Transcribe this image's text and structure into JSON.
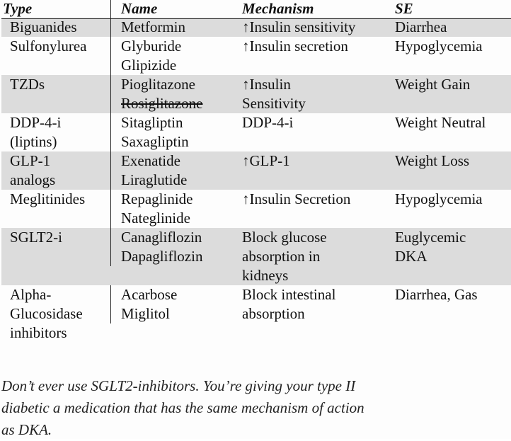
{
  "table": {
    "headers": {
      "type": "Type",
      "name": "Name",
      "mechanism": "Mechanism",
      "se": "SE"
    },
    "rows": [
      {
        "shaded": true,
        "type": [
          "Biguanides"
        ],
        "name": [
          "Metformin"
        ],
        "mechanism": [
          "↑Insulin sensitivity"
        ],
        "se": [
          "Diarrhea"
        ]
      },
      {
        "shaded": false,
        "type": [
          "Sulfonylurea"
        ],
        "name": [
          "Glyburide",
          "Glipizide"
        ],
        "mechanism": [
          "↑Insulin secretion"
        ],
        "se": [
          "Hypoglycemia"
        ]
      },
      {
        "shaded": true,
        "type": [
          "TZDs"
        ],
        "name": [
          "Pioglitazone",
          "Rosiglitazone"
        ],
        "mechanism": [
          "↑Insulin",
          "Sensitivity"
        ],
        "se": [
          "Weight Gain"
        ]
      },
      {
        "shaded": false,
        "type": [
          "DDP-4-i",
          "(liptins)"
        ],
        "name": [
          "Sitagliptin",
          "Saxagliptin"
        ],
        "mechanism": [
          "DDP-4-i"
        ],
        "se": [
          "Weight Neutral"
        ]
      },
      {
        "shaded": true,
        "type": [
          "GLP-1",
          "analogs"
        ],
        "name": [
          "Exenatide",
          "Liraglutide"
        ],
        "mechanism": [
          "↑GLP-1"
        ],
        "se": [
          "Weight Loss"
        ]
      },
      {
        "shaded": false,
        "type": [
          "Meglitinides"
        ],
        "name": [
          "Repaglinide",
          "Nateglinide"
        ],
        "mechanism": [
          "↑Insulin Secretion"
        ],
        "se": [
          "Hypoglycemia"
        ]
      },
      {
        "shaded": true,
        "type": [
          "SGLT2-i"
        ],
        "name": [
          "Canagliflozin",
          "Dapagliflozin"
        ],
        "mechanism": [
          "Block glucose",
          "absorption in",
          "kidneys"
        ],
        "se": [
          "Euglycemic",
          "DKA"
        ]
      },
      {
        "shaded": false,
        "type": [
          "Alpha-",
          "Glucosidase",
          "inhibitors"
        ],
        "name": [
          "Acarbose",
          "Miglitol"
        ],
        "mechanism": [
          "Block intestinal",
          "absorption"
        ],
        "se": [
          "Diarrhea, Gas"
        ]
      }
    ],
    "struck_out": [
      "Rosiglitazone"
    ]
  },
  "note": {
    "lines": [
      "Don’t ever use SGLT2-inhibitors. You’re giving your type II",
      "diabetic a medication that has the same mechanism of action",
      "as DKA."
    ]
  },
  "colors": {
    "shaded_row": "#dcdcdc",
    "rule": "#222222",
    "text": "#111111"
  }
}
